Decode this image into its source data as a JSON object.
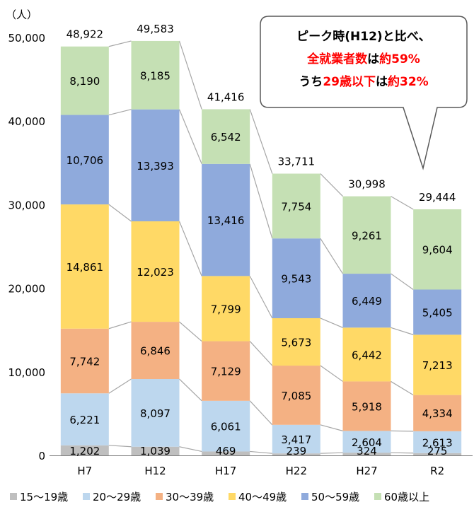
{
  "chart_data": {
    "type": "bar",
    "stacked": true,
    "unit_label": "（人）",
    "categories": [
      "H7",
      "H12",
      "H17",
      "H22",
      "H27",
      "R2"
    ],
    "totals": [
      "48,922",
      "49,583",
      "41,416",
      "33,711",
      "30,998",
      "29,444"
    ],
    "ylim": [
      0,
      50000
    ],
    "yticks": [
      "0",
      "10,000",
      "20,000",
      "30,000",
      "40,000",
      "50,000"
    ],
    "grid": false,
    "legend_position": "bottom",
    "series": [
      {
        "name": "15～19歳",
        "color": "#bfbfbf",
        "values": [
          1202,
          1039,
          469,
          239,
          324,
          275
        ]
      },
      {
        "name": "20～29歳",
        "color": "#bdd7ee",
        "values": [
          6221,
          8097,
          6061,
          3417,
          2604,
          2613
        ]
      },
      {
        "name": "30～39歳",
        "color": "#f4b183",
        "values": [
          7742,
          6846,
          7129,
          7085,
          5918,
          4334
        ]
      },
      {
        "name": "40～49歳",
        "color": "#ffd966",
        "values": [
          14861,
          12023,
          7799,
          5673,
          6442,
          7213
        ]
      },
      {
        "name": "50～59歳",
        "color": "#8faadc",
        "values": [
          10706,
          13393,
          13416,
          9543,
          6449,
          5405
        ]
      },
      {
        "name": "60歳以上",
        "color": "#c5e0b4",
        "values": [
          8190,
          8185,
          6542,
          7754,
          9261,
          9604
        ]
      }
    ],
    "callout": {
      "line1": "ピーク時(H12)と比べ、",
      "line2_a": "全就業者数",
      "line2_b": "は",
      "line2_c": "約59%",
      "line3_a": "うち",
      "line3_b": "29歳以下",
      "line3_c": "は",
      "line3_d": "約32%",
      "highlight_color": "#ff0000"
    }
  }
}
